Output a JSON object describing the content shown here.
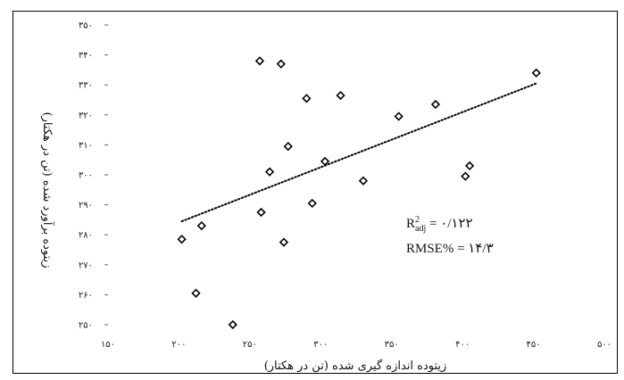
{
  "chart_data": {
    "type": "scatter",
    "xlabel": "زیتوده اندازه گیری شده (تن در هکتار)",
    "ylabel": "زیتوده برآورد شده (تن در هکتار)",
    "xlim": [
      150,
      500
    ],
    "ylim": [
      250,
      350
    ],
    "x_ticks": [
      150,
      200,
      250,
      300,
      350,
      400,
      450,
      500
    ],
    "y_ticks": [
      250,
      260,
      270,
      280,
      290,
      300,
      310,
      320,
      330,
      340,
      350
    ],
    "x_tick_labels": [
      "۱۵۰",
      "۲۰۰",
      "۲۵۰",
      "۳۰۰",
      "۳۵۰",
      "۴۰۰",
      "۴۵۰",
      "۵۰۰"
    ],
    "y_tick_labels": [
      "۲۵۰",
      "۲۶۰",
      "۲۷۰",
      "۲۸۰",
      "۲۹۰",
      "۳۰۰",
      "۳۱۰",
      "۳۲۰",
      "۳۳۰",
      "۳۴۰",
      "۳۵۰"
    ],
    "grid": false,
    "marker": "diamond",
    "points": [
      {
        "x": 202,
        "y": 278.5
      },
      {
        "x": 212,
        "y": 260.5
      },
      {
        "x": 216,
        "y": 283
      },
      {
        "x": 238,
        "y": 250
      },
      {
        "x": 257,
        "y": 338
      },
      {
        "x": 258,
        "y": 287.5
      },
      {
        "x": 264,
        "y": 301
      },
      {
        "x": 272,
        "y": 337
      },
      {
        "x": 274,
        "y": 277.5
      },
      {
        "x": 277,
        "y": 309.5
      },
      {
        "x": 290,
        "y": 325.5
      },
      {
        "x": 294,
        "y": 290.5
      },
      {
        "x": 303,
        "y": 304.5
      },
      {
        "x": 314,
        "y": 326.5
      },
      {
        "x": 330,
        "y": 298
      },
      {
        "x": 355,
        "y": 319.5
      },
      {
        "x": 381,
        "y": 323.5
      },
      {
        "x": 402,
        "y": 299.5
      },
      {
        "x": 405,
        "y": 303
      },
      {
        "x": 452,
        "y": 334
      }
    ],
    "trendline": {
      "style": "dotted",
      "x": [
        202,
        452
      ],
      "y": [
        284.5,
        330.5
      ]
    },
    "annotations": {
      "r2_main": "R",
      "r2_sup": "2",
      "r2_sub": "adj",
      "r2_value": " = ۰/۱۲۲",
      "rmse": "RMSE% = ۱۴/۳"
    }
  }
}
